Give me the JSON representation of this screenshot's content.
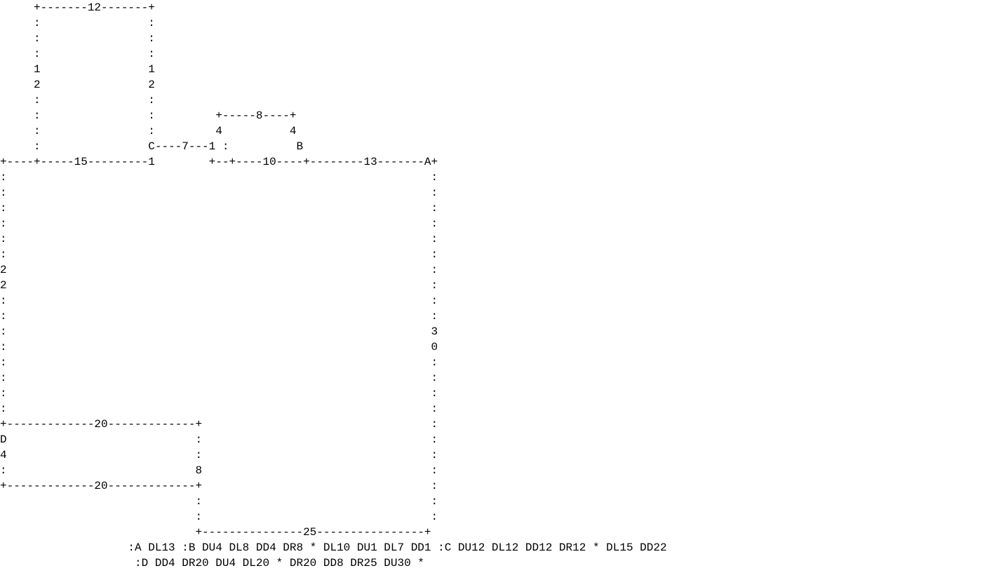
{
  "diagram": {
    "type": "ascii-floorplan",
    "rows": [
      "     +-------12-------+",
      "     :                :",
      "     :                :",
      "     :                :",
      "     1                1",
      "     2                2",
      "     :                :",
      "     :                :         +-----8----+",
      "     :                :         4          4",
      "     :                C----7---1 :          B",
      "+----+-----15---------1        +--+----10----+--------13-------A+",
      ":                                                               :",
      ":                                                               :",
      ":                                                               :",
      ":                                                               :",
      ":                                                               :",
      ":                                                               :",
      "2                                                               :",
      "2                                                               :",
      ":                                                               :",
      ":                                                               :",
      ":                                                               3",
      ":                                                               0",
      ":                                                               :",
      ":                                                               :",
      ":                                                               :",
      ":                                                               :",
      "+-------------20-------------+                                  :",
      "D                            :                                  :",
      "4                            :                                  :",
      ":                            8                                  :",
      "+-------------20-------------+                                  :",
      "                             :                                  :",
      "                             :                                  :",
      "                             +---------------25----------------+",
      "                   :A DL13 :B DU4 DL8 DD4 DR8 * DL10 DU1 DL7 DD1 :C DU12 DL12 DD12 DR12 * DL15 DD22",
      "                    :D DD4 DR20 DU4 DL20 * DR20 DD8 DR25 DU30 *"
    ],
    "points": [
      "A",
      "B",
      "C",
      "D"
    ],
    "dimensions": [
      "12",
      "12",
      "12",
      "8",
      "4",
      "4",
      "7",
      "1",
      "1",
      "15",
      "10",
      "13",
      "22",
      "30",
      "20",
      "4",
      "8",
      "20",
      "25"
    ],
    "path_code": [
      ":A DL13 :B DU4 DL8 DD4 DR8 * DL10 DU1 DL7 DD1 :C DU12 DL12 DD12 DR12 * DL15 DD22",
      ":D DD4 DR20 DU4 DL20 * DR20 DD8 DR25 DU30 *"
    ]
  }
}
